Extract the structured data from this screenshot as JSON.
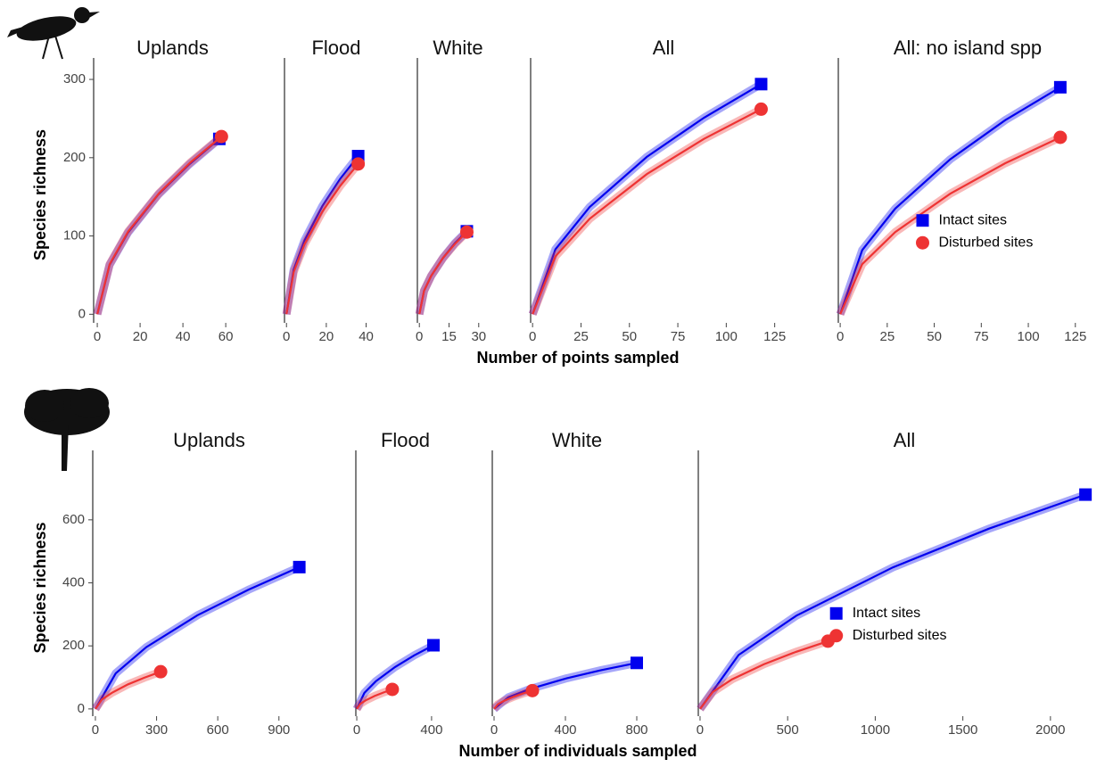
{
  "chart_data": [
    {
      "type": "line",
      "title": "Uplands",
      "ylabel": "Species richness",
      "xlabel": "Number of points sampled",
      "xlim": [
        -1.7,
        63.7
      ],
      "xticks": [
        0,
        20,
        40,
        60
      ],
      "ylim": [
        -11,
        316
      ],
      "yticks": [
        0,
        100,
        200,
        300
      ],
      "series": [
        {
          "name": "Intact sites",
          "color": "#0000ee",
          "x": [
            0,
            5.7,
            14.25,
            28.5,
            42.75,
            57
          ],
          "values": [
            0,
            63,
            104,
            153,
            191,
            224
          ]
        },
        {
          "name": "Disturbed sites",
          "color": "#ee3333",
          "x": [
            0,
            5.8,
            14.5,
            29,
            43.5,
            58
          ],
          "values": [
            0,
            64,
            106,
            155,
            194,
            227
          ]
        }
      ]
    },
    {
      "type": "line",
      "title": "Flood",
      "xlim": [
        -1,
        42
      ],
      "xticks": [
        0,
        20,
        40
      ],
      "ylim": [
        -11,
        316
      ],
      "series": [
        {
          "name": "Intact sites",
          "color": "#0000ee",
          "x": [
            0,
            3.6,
            9,
            18,
            27,
            36
          ],
          "values": [
            0,
            57,
            94,
            138,
            173,
            202
          ]
        },
        {
          "name": "Disturbed sites",
          "color": "#ee3333",
          "x": [
            0,
            3.6,
            9,
            18,
            27,
            36
          ],
          "values": [
            0,
            54,
            89,
            131,
            164,
            192
          ]
        }
      ]
    },
    {
      "type": "line",
      "title": "White",
      "xlim": [
        -1,
        31
      ],
      "xticks": [
        0,
        15,
        30
      ],
      "ylim": [
        -11,
        316
      ],
      "series": [
        {
          "name": "Intact sites",
          "color": "#0000ee",
          "x": [
            0,
            2.4,
            6,
            12,
            18,
            24
          ],
          "values": [
            0,
            30,
            49,
            72,
            91,
            106
          ]
        },
        {
          "name": "Disturbed sites",
          "color": "#ee3333",
          "x": [
            0,
            2.4,
            6,
            12,
            18,
            24
          ],
          "values": [
            0,
            30,
            49,
            72,
            90,
            105
          ]
        }
      ]
    },
    {
      "type": "line",
      "title": "All",
      "xlim": [
        -1,
        127
      ],
      "xticks": [
        0,
        25,
        50,
        75,
        100,
        125
      ],
      "ylim": [
        -11,
        316
      ],
      "series": [
        {
          "name": "Intact sites",
          "color": "#0000ee",
          "x": [
            0,
            11.8,
            29.5,
            59,
            88.5,
            118
          ],
          "values": [
            0,
            83,
            137,
            201,
            251,
            294
          ]
        },
        {
          "name": "Disturbed sites",
          "color": "#ee3333",
          "x": [
            0,
            11.8,
            29.5,
            59,
            88.5,
            118
          ],
          "values": [
            0,
            74,
            122,
            179,
            224,
            262
          ]
        }
      ]
    },
    {
      "type": "line",
      "title": "All: no island spp",
      "xlim": [
        -1,
        127
      ],
      "xticks": [
        0,
        25,
        50,
        75,
        100,
        125
      ],
      "ylim": [
        -11,
        316
      ],
      "legend": "right",
      "series": [
        {
          "name": "Intact sites",
          "color": "#0000ee",
          "x": [
            0,
            11.7,
            29.25,
            58.5,
            87.75,
            117
          ],
          "values": [
            0,
            82,
            135,
            198,
            248,
            290
          ]
        },
        {
          "name": "Disturbed sites",
          "color": "#ee3333",
          "x": [
            0,
            11.7,
            29.25,
            58.5,
            87.75,
            117
          ],
          "values": [
            0,
            64,
            105,
            154,
            193,
            226
          ]
        }
      ]
    },
    {
      "type": "line",
      "title": "Uplands",
      "ylabel": "Species richness",
      "xlabel": "Number of individuals sampled",
      "xlim": [
        -13,
        1041
      ],
      "xticks": [
        0,
        300,
        600,
        900
      ],
      "ylim": [
        -23,
        792
      ],
      "yticks": [
        0,
        200,
        400,
        600
      ],
      "series": [
        {
          "name": "Intact sites",
          "color": "#0000ee",
          "x": [
            0,
            100,
            250,
            500,
            750,
            1000
          ],
          "values": [
            0,
            113,
            196,
            297,
            378,
            450
          ]
        },
        {
          "name": "Disturbed sites",
          "color": "#ee3333",
          "x": [
            0,
            32,
            80,
            160,
            240,
            320
          ],
          "values": [
            0,
            30,
            51,
            78,
            99,
            118
          ]
        }
      ]
    },
    {
      "type": "line",
      "title": "Flood",
      "xlim": [
        -5,
        429
      ],
      "xticks": [
        0,
        400
      ],
      "ylim": [
        -23,
        792
      ],
      "series": [
        {
          "name": "Intact sites",
          "color": "#0000ee",
          "x": [
            0,
            41,
            102.5,
            205,
            307.5,
            410
          ],
          "values": [
            0,
            51,
            88,
            133,
            170,
            202
          ]
        },
        {
          "name": "Disturbed sites",
          "color": "#ee3333",
          "x": [
            0,
            19,
            47.5,
            95,
            142.5,
            190
          ],
          "values": [
            0,
            16,
            27,
            41,
            52,
            62
          ]
        }
      ]
    },
    {
      "type": "line",
      "title": "White",
      "xlim": [
        -10,
        840
      ],
      "xticks": [
        0,
        400,
        800
      ],
      "ylim": [
        -23,
        792
      ],
      "series": [
        {
          "name": "Intact sites",
          "color": "#0000ee",
          "x": [
            0,
            80,
            200,
            400,
            600,
            800
          ],
          "values": [
            0,
            37,
            63,
            96,
            123,
            146
          ]
        },
        {
          "name": "Disturbed sites",
          "color": "#ee3333",
          "x": [
            0,
            21.5,
            53.75,
            107.5,
            161.25,
            215
          ],
          "values": [
            0,
            15,
            25,
            38,
            49,
            58
          ]
        }
      ]
    },
    {
      "type": "line",
      "title": "All",
      "xlim": [
        -10,
        2240
      ],
      "xticks": [
        0,
        500,
        1000,
        1500,
        2000
      ],
      "ylim": [
        -23,
        792
      ],
      "legend": "right",
      "series": [
        {
          "name": "Intact sites",
          "color": "#0000ee",
          "x": [
            0,
            220,
            550,
            1100,
            1650,
            2200
          ],
          "values": [
            0,
            171,
            296,
            449,
            572,
            680
          ]
        },
        {
          "name": "Disturbed sites",
          "color": "#ee3333",
          "x": [
            0,
            73,
            182.5,
            365,
            547.5,
            730
          ],
          "values": [
            0,
            54,
            94,
            142,
            181,
            215
          ]
        }
      ]
    }
  ]
}
